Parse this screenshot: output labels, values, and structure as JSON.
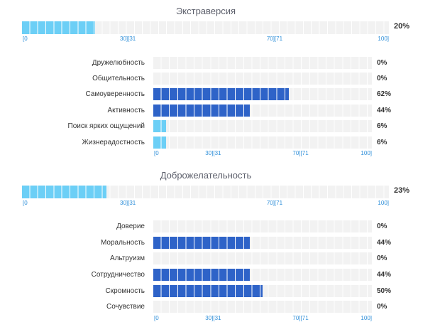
{
  "sections": [
    {
      "title": "Экстраверсия",
      "value": 20,
      "value_text": "20%",
      "scale": [
        "[0",
        "30][31",
        "70][71",
        "100]"
      ],
      "subscales": [
        {
          "label": "Дружелюбность",
          "value": 0,
          "value_text": "0%"
        },
        {
          "label": "Общительность",
          "value": 0,
          "value_text": "0%"
        },
        {
          "label": "Самоуверенность",
          "value": 62,
          "value_text": "62%"
        },
        {
          "label": "Активность",
          "value": 44,
          "value_text": "44%"
        },
        {
          "label": "Поиск ярких ощущений",
          "value": 6,
          "value_text": "6%"
        },
        {
          "label": "Жизнерадостность",
          "value": 6,
          "value_text": "6%"
        }
      ]
    },
    {
      "title": "Доброжелательность",
      "value": 23,
      "value_text": "23%",
      "scale": [
        "[0",
        "30][31",
        "70][71",
        "100]"
      ],
      "subscales": [
        {
          "label": "Доверие",
          "value": 0,
          "value_text": "0%"
        },
        {
          "label": "Моральность",
          "value": 44,
          "value_text": "44%"
        },
        {
          "label": "Альтруизм",
          "value": 0,
          "value_text": "0%"
        },
        {
          "label": "Сотрудничество",
          "value": 44,
          "value_text": "44%"
        },
        {
          "label": "Скромность",
          "value": 50,
          "value_text": "50%"
        },
        {
          "label": "Сочувствие",
          "value": 0,
          "value_text": "0%"
        }
      ]
    }
  ],
  "colors": {
    "main_fill": "#6ccff6",
    "sub_fill": "#2e63c8",
    "sub_fill_low": "#6ccff6",
    "track": "#f2f2f2",
    "scale_text": "#2f8fd9"
  }
}
